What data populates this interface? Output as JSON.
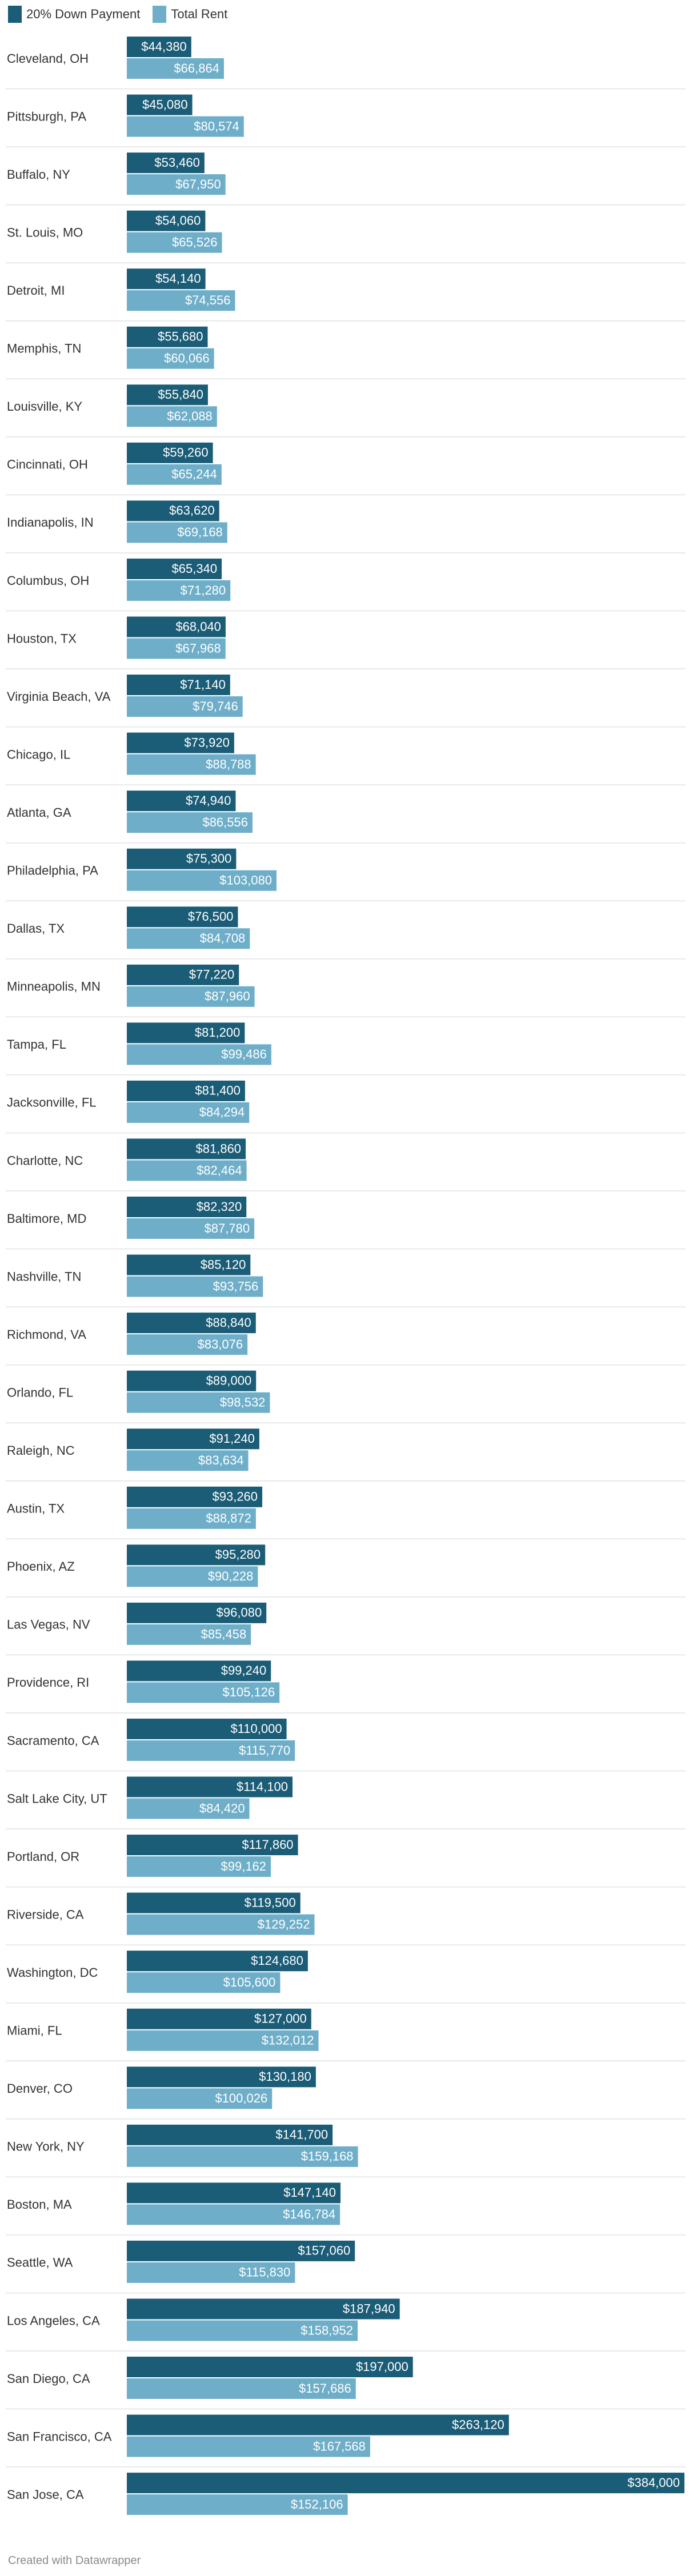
{
  "legend": {
    "series1": "20% Down Payment",
    "series2": "Total Rent"
  },
  "colors": {
    "down_payment": "#1b5c76",
    "total_rent": "#6eaec9",
    "separator": "#e2e2e2",
    "label_text": "#ffffff"
  },
  "footer": "Created with Datawrapper",
  "chart_data": {
    "type": "bar",
    "orientation": "horizontal",
    "xlim": [
      0,
      384000
    ],
    "categories": [
      "Cleveland, OH",
      "Pittsburgh, PA",
      "Buffalo, NY",
      "St. Louis, MO",
      "Detroit, MI",
      "Memphis, TN",
      "Louisville, KY",
      "Cincinnati, OH",
      "Indianapolis, IN",
      "Columbus, OH",
      "Houston, TX",
      "Virginia Beach, VA",
      "Chicago, IL",
      "Atlanta, GA",
      "Philadelphia, PA",
      "Dallas, TX",
      "Minneapolis, MN",
      "Tampa, FL",
      "Jacksonville, FL",
      "Charlotte, NC",
      "Baltimore, MD",
      "Nashville, TN",
      "Richmond, VA",
      "Orlando, FL",
      "Raleigh, NC",
      "Austin, TX",
      "Phoenix, AZ",
      "Las Vegas, NV",
      "Providence, RI",
      "Sacramento, CA",
      "Salt Lake City, UT",
      "Portland, OR",
      "Riverside, CA",
      "Washington, DC",
      "Miami, FL",
      "Denver, CO",
      "New York, NY",
      "Boston, MA",
      "Seattle, WA",
      "Los Angeles, CA",
      "San Diego, CA",
      "San Francisco, CA",
      "San Jose, CA"
    ],
    "series": [
      {
        "name": "20% Down Payment",
        "values": [
          44380,
          45080,
          53460,
          54060,
          54140,
          55680,
          55840,
          59260,
          63620,
          65340,
          68040,
          71140,
          73920,
          74940,
          75300,
          76500,
          77220,
          81200,
          81400,
          81860,
          82320,
          85120,
          88840,
          89000,
          91240,
          93260,
          95280,
          96080,
          99240,
          110000,
          114100,
          117860,
          119500,
          124680,
          127000,
          130180,
          141700,
          147140,
          157060,
          187940,
          197000,
          263120,
          384000
        ],
        "labels": [
          "$44,380",
          "$45,080",
          "$53,460",
          "$54,060",
          "$54,140",
          "$55,680",
          "$55,840",
          "$59,260",
          "$63,620",
          "$65,340",
          "$68,040",
          "$71,140",
          "$73,920",
          "$74,940",
          "$75,300",
          "$76,500",
          "$77,220",
          "$81,200",
          "$81,400",
          "$81,860",
          "$82,320",
          "$85,120",
          "$88,840",
          "$89,000",
          "$91,240",
          "$93,260",
          "$95,280",
          "$96,080",
          "$99,240",
          "$110,000",
          "$114,100",
          "$117,860",
          "$119,500",
          "$124,680",
          "$127,000",
          "$130,180",
          "$141,700",
          "$147,140",
          "$157,060",
          "$187,940",
          "$197,000",
          "$263,120",
          "$384,000"
        ]
      },
      {
        "name": "Total Rent",
        "values": [
          66864,
          80574,
          67950,
          65526,
          74556,
          60066,
          62088,
          65244,
          69168,
          71280,
          67968,
          79746,
          88788,
          86556,
          103080,
          84708,
          87960,
          99486,
          84294,
          82464,
          87780,
          93756,
          83076,
          98532,
          83634,
          88872,
          90228,
          85458,
          105126,
          115770,
          84420,
          99162,
          129252,
          105600,
          132012,
          100026,
          159168,
          146784,
          115830,
          158952,
          157686,
          167568,
          152106
        ],
        "labels": [
          "$66,864",
          "$80,574",
          "$67,950",
          "$65,526",
          "$74,556",
          "$60,066",
          "$62,088",
          "$65,244",
          "$69,168",
          "$71,280",
          "$67,968",
          "$79,746",
          "$88,788",
          "$86,556",
          "$103,080",
          "$84,708",
          "$87,960",
          "$99,486",
          "$84,294",
          "$82,464",
          "$87,780",
          "$93,756",
          "$83,076",
          "$98,532",
          "$83,634",
          "$88,872",
          "$90,228",
          "$85,458",
          "$105,126",
          "$115,770",
          "$84,420",
          "$99,162",
          "$129,252",
          "$105,600",
          "$132,012",
          "$100,026",
          "$159,168",
          "$146,784",
          "$115,830",
          "$158,952",
          "$157,686",
          "$167,568",
          "$152,106"
        ]
      }
    ]
  }
}
